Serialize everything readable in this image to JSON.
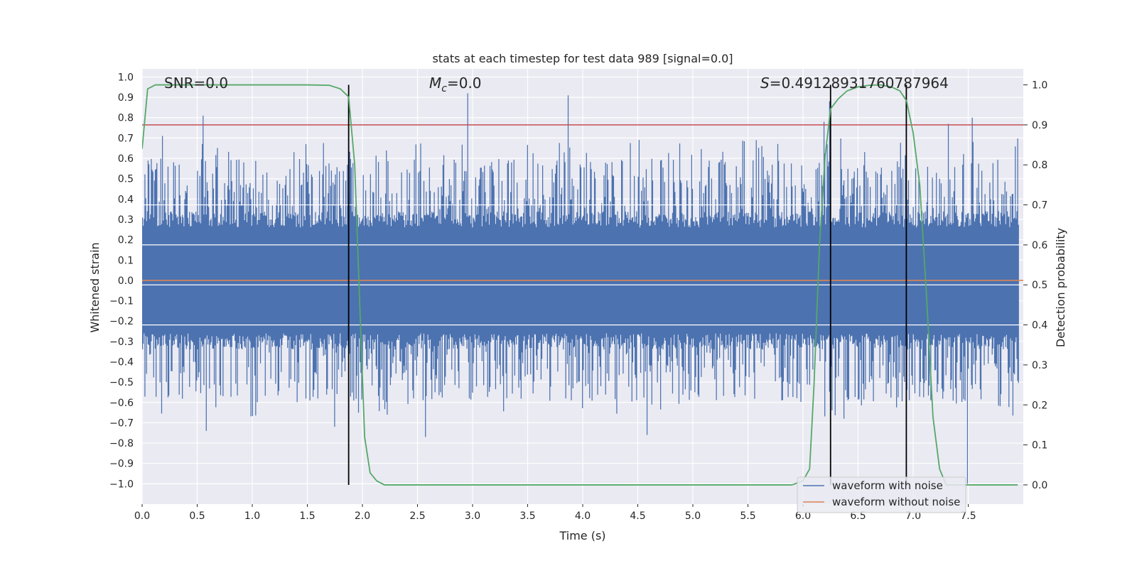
{
  "chart_data": {
    "type": "line",
    "title": "stats at each timestep for test data 989 [signal=0.0]",
    "xlabel": "Time (s)",
    "ylabel_left": "Whitened strain",
    "ylabel_right": "Detection probability",
    "xlim": [
      0.0,
      8.0
    ],
    "ylim_left": [
      -1.1,
      1.04
    ],
    "ylim_right": [
      -0.048,
      1.04
    ],
    "x_ticks": [
      0.0,
      0.5,
      1.0,
      1.5,
      2.0,
      2.5,
      3.0,
      3.5,
      4.0,
      4.5,
      5.0,
      5.5,
      6.0,
      6.5,
      7.0,
      7.5
    ],
    "x_tick_labels": [
      "0.0",
      "0.5",
      "1.0",
      "1.5",
      "2.0",
      "2.5",
      "3.0",
      "3.5",
      "4.0",
      "4.5",
      "5.0",
      "5.5",
      "6.0",
      "6.5",
      "7.0",
      "7.5"
    ],
    "y_left_ticks": [
      1.0,
      0.9,
      0.8,
      0.7,
      0.6,
      0.5,
      0.4,
      0.3,
      0.2,
      0.1,
      0.0,
      -0.1,
      -0.2,
      -0.3,
      -0.4,
      -0.5,
      -0.6,
      -0.7,
      -0.8,
      -0.9,
      -1.0
    ],
    "y_left_tick_labels": [
      "1.0",
      "0.9",
      "0.8",
      "0.7",
      "0.6",
      "0.5",
      "0.4",
      "0.3",
      "0.2",
      "0.1",
      "0.0",
      "−0.1",
      "−0.2",
      "−0.3",
      "−0.4",
      "−0.5",
      "−0.6",
      "−0.7",
      "−0.8",
      "−0.9",
      "−1.0"
    ],
    "y_right_ticks": [
      1.0,
      0.9,
      0.8,
      0.7,
      0.6,
      0.5,
      0.4,
      0.3,
      0.2,
      0.1,
      0.0
    ],
    "y_right_tick_labels": [
      "1.0",
      "0.9",
      "0.8",
      "0.7",
      "0.6",
      "0.5",
      "0.4",
      "0.3",
      "0.2",
      "0.1",
      "0.0"
    ],
    "annotations": {
      "snr": "SNR=0.0",
      "mc_symbol": "M",
      "mc_sub": "c",
      "mc_value": "=0.0",
      "s_symbol": "S",
      "s_value": "=0.49128931760787964"
    },
    "legend": {
      "placement": "lower-right",
      "entries": [
        {
          "name": "waveform with noise",
          "color": "#4c72b0"
        },
        {
          "name": "waveform without noise",
          "color": "#dd8452"
        }
      ]
    },
    "threshold": {
      "value": 0.9,
      "axis": "right",
      "color": "#c44e52"
    },
    "vertical_markers": [
      1.875,
      6.25,
      6.938
    ],
    "noise_series": {
      "color": "#4c72b0",
      "spikes": [
        {
          "x": 0.55,
          "y": 0.81
        },
        {
          "x": 0.18,
          "y": 0.71
        },
        {
          "x": 0.58,
          "y": 0.75
        },
        {
          "x": 2.97,
          "y": 0.92
        },
        {
          "x": 3.88,
          "y": 0.91
        },
        {
          "x": 6.27,
          "y": 0.88
        },
        {
          "x": 6.22,
          "y": 0.78
        },
        {
          "x": 7.35,
          "y": 0.77
        },
        {
          "x": 7.57,
          "y": 0.8
        },
        {
          "x": 0.58,
          "y": -0.74
        },
        {
          "x": 2.58,
          "y": -0.77
        },
        {
          "x": 4.6,
          "y": -0.76
        },
        {
          "x": 1.75,
          "y": -0.72
        },
        {
          "x": 7.53,
          "y": -1.0
        },
        {
          "x": 6.4,
          "y": -0.68
        }
      ]
    },
    "clean_series": {
      "color": "#dd8452",
      "value": 0.0
    },
    "probability_series": {
      "color": "#55a868",
      "x": [
        0.0,
        0.05,
        0.12,
        0.3,
        0.6,
        1.0,
        1.5,
        1.7,
        1.8,
        1.875,
        1.93,
        1.98,
        2.02,
        2.07,
        2.13,
        2.2,
        2.5,
        3.0,
        4.0,
        5.0,
        5.9,
        6.0,
        6.06,
        6.1,
        6.15,
        6.2,
        6.25,
        6.32,
        6.4,
        6.5,
        6.6,
        6.7,
        6.8,
        6.88,
        6.94,
        7.0,
        7.06,
        7.12,
        7.18,
        7.24,
        7.3,
        7.4,
        7.6,
        7.95
      ],
      "y": [
        0.84,
        0.99,
        1.0,
        1.0,
        1.0,
        1.0,
        1.0,
        0.999,
        0.99,
        0.97,
        0.8,
        0.42,
        0.12,
        0.03,
        0.01,
        0.0,
        0.0,
        0.0,
        0.0,
        0.0,
        0.0,
        0.01,
        0.04,
        0.25,
        0.6,
        0.82,
        0.94,
        0.965,
        0.985,
        0.995,
        0.999,
        1.0,
        0.995,
        0.985,
        0.96,
        0.88,
        0.75,
        0.48,
        0.17,
        0.04,
        0.0,
        0.0,
        0.0,
        0.0
      ]
    }
  }
}
